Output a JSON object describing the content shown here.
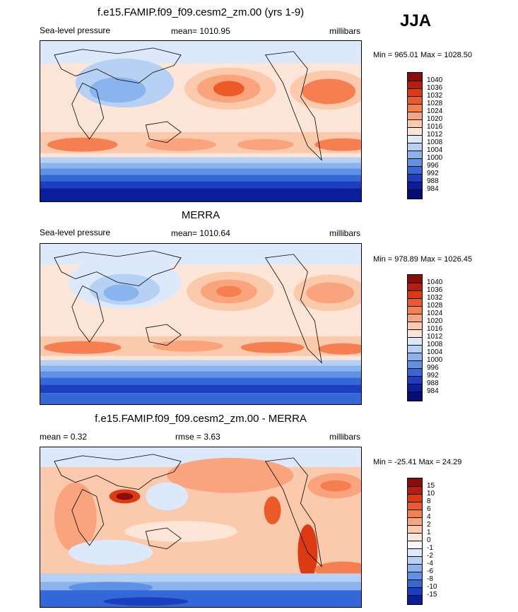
{
  "season": "JJA",
  "panels": [
    {
      "title": "f.e15.FAMIP.f09_f09.cesm2_zm.00 (yrs 1-9)",
      "left": "Sea-level pressure",
      "center": "mean= 1010.95",
      "right": "millibars",
      "minmax": "Min = 965.01 Max = 1028.50",
      "levels": [
        "1040",
        "1036",
        "1032",
        "1028",
        "1024",
        "1020",
        "1016",
        "1012",
        "1008",
        "1004",
        "1000",
        "996",
        "992",
        "988",
        "984"
      ],
      "colors": [
        "#8a0c0c",
        "#b81c0c",
        "#dd3a14",
        "#ec5a2a",
        "#f57f50",
        "#f9a47c",
        "#fbc9ab",
        "#fde6d8",
        "#dbe9fa",
        "#b6d1f4",
        "#8ab4ee",
        "#5e92e4",
        "#3467d8",
        "#1a3fc0",
        "#0a1d9a",
        "#050c73"
      ]
    },
    {
      "title": "MERRA",
      "left": "Sea-level pressure",
      "center": "mean= 1010.64",
      "right": "millibars",
      "minmax": "Min = 978.89 Max = 1026.45",
      "levels": [
        "1040",
        "1036",
        "1032",
        "1028",
        "1024",
        "1020",
        "1016",
        "1012",
        "1008",
        "1004",
        "1000",
        "996",
        "992",
        "988",
        "984"
      ],
      "colors": [
        "#8a0c0c",
        "#b81c0c",
        "#dd3a14",
        "#ec5a2a",
        "#f57f50",
        "#f9a47c",
        "#fbc9ab",
        "#fde6d8",
        "#dbe9fa",
        "#b6d1f4",
        "#8ab4ee",
        "#5e92e4",
        "#3467d8",
        "#1a3fc0",
        "#0a1d9a",
        "#050c73"
      ]
    },
    {
      "title": "f.e15.FAMIP.f09_f09.cesm2_zm.00 - MERRA",
      "left": "mean =   0.32",
      "center": "rmse =   3.63",
      "right": "millibars",
      "minmax": "Min = -25.41 Max =  24.29",
      "levels": [
        "15",
        "10",
        "8",
        "6",
        "4",
        "2",
        "1",
        "0",
        "-1",
        "-2",
        "-4",
        "-6",
        "-8",
        "-10",
        "-15"
      ],
      "colors": [
        "#8a0c0c",
        "#b81c0c",
        "#dd3a14",
        "#ec5a2a",
        "#f57f50",
        "#f9a47c",
        "#fbc9ab",
        "#fde6d8",
        "#f4f6fb",
        "#dbe9fa",
        "#b6d1f4",
        "#8ab4ee",
        "#5e92e4",
        "#3467d8",
        "#1a3fc0",
        "#0a1d9a"
      ]
    }
  ]
}
